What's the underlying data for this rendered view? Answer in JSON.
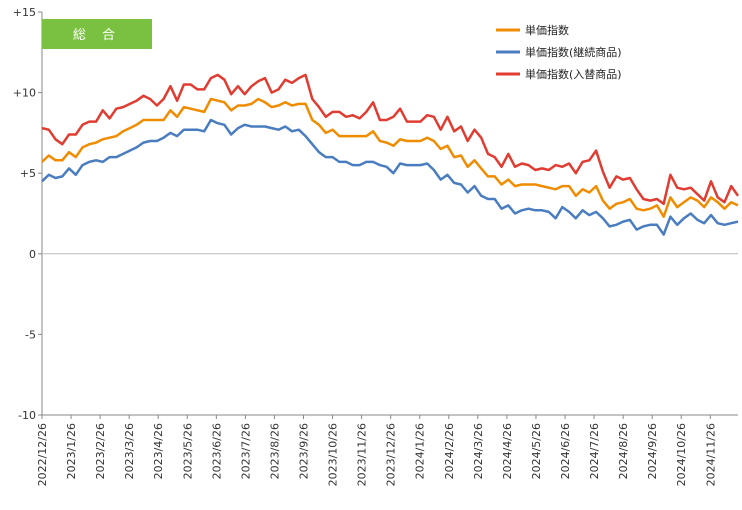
{
  "chart_data": {
    "type": "line",
    "title": "",
    "badge": "総 合",
    "badge_color": "#7ac142",
    "xlabel": "",
    "ylabel": "",
    "ylim": [
      -10,
      15
    ],
    "y_ticks": [
      -10,
      -5,
      0,
      5,
      10,
      15
    ],
    "y_tick_labels": [
      "-10",
      "-5",
      "0",
      "+5",
      "+10",
      "+15"
    ],
    "x_tick_labels": [
      "2022/12/26",
      "2023/1/26",
      "2023/2/26",
      "2023/3/26",
      "2023/4/26",
      "2023/5/26",
      "2023/6/26",
      "2023/7/26",
      "2023/8/26",
      "2023/9/26",
      "2023/10/26",
      "2023/11/26",
      "2023/12/26",
      "2024/1/26",
      "2024/2/26",
      "2024/3/26",
      "2024/4/26",
      "2024/5/26",
      "2024/6/26",
      "2024/7/26",
      "2024/8/26",
      "2024/9/26",
      "2024/10/26",
      "2024/11/26"
    ],
    "points_per_month": 4.3,
    "grid": false,
    "legend_position": "top-right",
    "series": [
      {
        "name": "単価指数",
        "color": "#f08c00",
        "values": [
          5.7,
          6.1,
          5.8,
          5.8,
          6.3,
          6.0,
          6.6,
          6.8,
          6.9,
          7.1,
          7.2,
          7.3,
          7.6,
          7.8,
          8.0,
          8.3,
          8.3,
          8.3,
          8.3,
          8.9,
          8.5,
          9.1,
          9.0,
          8.9,
          8.8,
          9.6,
          9.5,
          9.4,
          8.9,
          9.2,
          9.2,
          9.3,
          9.6,
          9.4,
          9.1,
          9.2,
          9.4,
          9.2,
          9.3,
          9.3,
          8.3,
          8.0,
          7.5,
          7.7,
          7.3,
          7.3,
          7.3,
          7.3,
          7.3,
          7.6,
          7.0,
          6.9,
          6.7,
          7.1,
          7.0,
          7.0,
          7.0,
          7.2,
          7.0,
          6.5,
          6.7,
          6.0,
          6.1,
          5.4,
          5.8,
          5.3,
          4.8,
          4.8,
          4.3,
          4.6,
          4.2,
          4.3,
          4.3,
          4.3,
          4.2,
          4.1,
          4.0,
          4.2,
          4.2,
          3.6,
          4.0,
          3.8,
          4.2,
          3.3,
          2.8,
          3.1,
          3.2,
          3.4,
          2.8,
          2.7,
          2.8,
          3.0,
          2.3,
          3.5,
          2.9,
          3.2,
          3.5,
          3.3,
          2.9,
          3.5,
          3.2,
          2.8,
          3.2,
          3.0
        ],
        "show_in_legend": true
      },
      {
        "name": "単価指数(継続商品)",
        "color": "#4a7dbf",
        "values": [
          4.5,
          4.9,
          4.7,
          4.8,
          5.3,
          4.9,
          5.5,
          5.7,
          5.8,
          5.7,
          6.0,
          6.0,
          6.2,
          6.4,
          6.6,
          6.9,
          7.0,
          7.0,
          7.2,
          7.5,
          7.3,
          7.7,
          7.7,
          7.7,
          7.6,
          8.3,
          8.1,
          8.0,
          7.4,
          7.8,
          8.0,
          7.9,
          7.9,
          7.9,
          7.8,
          7.7,
          7.9,
          7.6,
          7.7,
          7.3,
          6.8,
          6.3,
          6.0,
          6.0,
          5.7,
          5.7,
          5.5,
          5.5,
          5.7,
          5.7,
          5.5,
          5.4,
          5.0,
          5.6,
          5.5,
          5.5,
          5.5,
          5.6,
          5.2,
          4.6,
          4.9,
          4.4,
          4.3,
          3.8,
          4.2,
          3.6,
          3.4,
          3.4,
          2.8,
          3.0,
          2.5,
          2.7,
          2.8,
          2.7,
          2.7,
          2.6,
          2.2,
          2.9,
          2.6,
          2.2,
          2.7,
          2.4,
          2.6,
          2.2,
          1.7,
          1.8,
          2.0,
          2.1,
          1.5,
          1.7,
          1.8,
          1.8,
          1.2,
          2.3,
          1.8,
          2.2,
          2.5,
          2.1,
          1.9,
          2.4,
          1.9,
          1.8,
          1.9,
          2.0
        ],
        "show_in_legend": true
      },
      {
        "name": "単価指数(入替商品)",
        "color": "#e03c31",
        "values": [
          7.8,
          7.7,
          7.1,
          6.8,
          7.4,
          7.4,
          8.0,
          8.2,
          8.2,
          8.9,
          8.4,
          9.0,
          9.1,
          9.3,
          9.5,
          9.8,
          9.6,
          9.2,
          9.6,
          10.4,
          9.5,
          10.5,
          10.5,
          10.2,
          10.2,
          10.9,
          11.1,
          10.8,
          9.9,
          10.4,
          9.9,
          10.4,
          10.7,
          10.9,
          10.0,
          10.2,
          10.8,
          10.6,
          10.9,
          11.1,
          9.6,
          9.1,
          8.5,
          8.8,
          8.8,
          8.5,
          8.6,
          8.4,
          8.8,
          9.4,
          8.3,
          8.3,
          8.5,
          9.0,
          8.2,
          8.2,
          8.2,
          8.6,
          8.5,
          7.7,
          8.5,
          7.6,
          7.9,
          7.0,
          7.7,
          7.2,
          6.2,
          6.0,
          5.4,
          6.2,
          5.4,
          5.6,
          5.5,
          5.2,
          5.3,
          5.2,
          5.5,
          5.4,
          5.6,
          5.0,
          5.7,
          5.8,
          6.4,
          5.1,
          4.1,
          4.8,
          4.6,
          4.7,
          4.0,
          3.4,
          3.3,
          3.4,
          3.1,
          4.9,
          4.1,
          4.0,
          4.1,
          3.7,
          3.3,
          4.5,
          3.5,
          3.2,
          4.2,
          3.6
        ],
        "show_in_legend": true
      }
    ]
  }
}
